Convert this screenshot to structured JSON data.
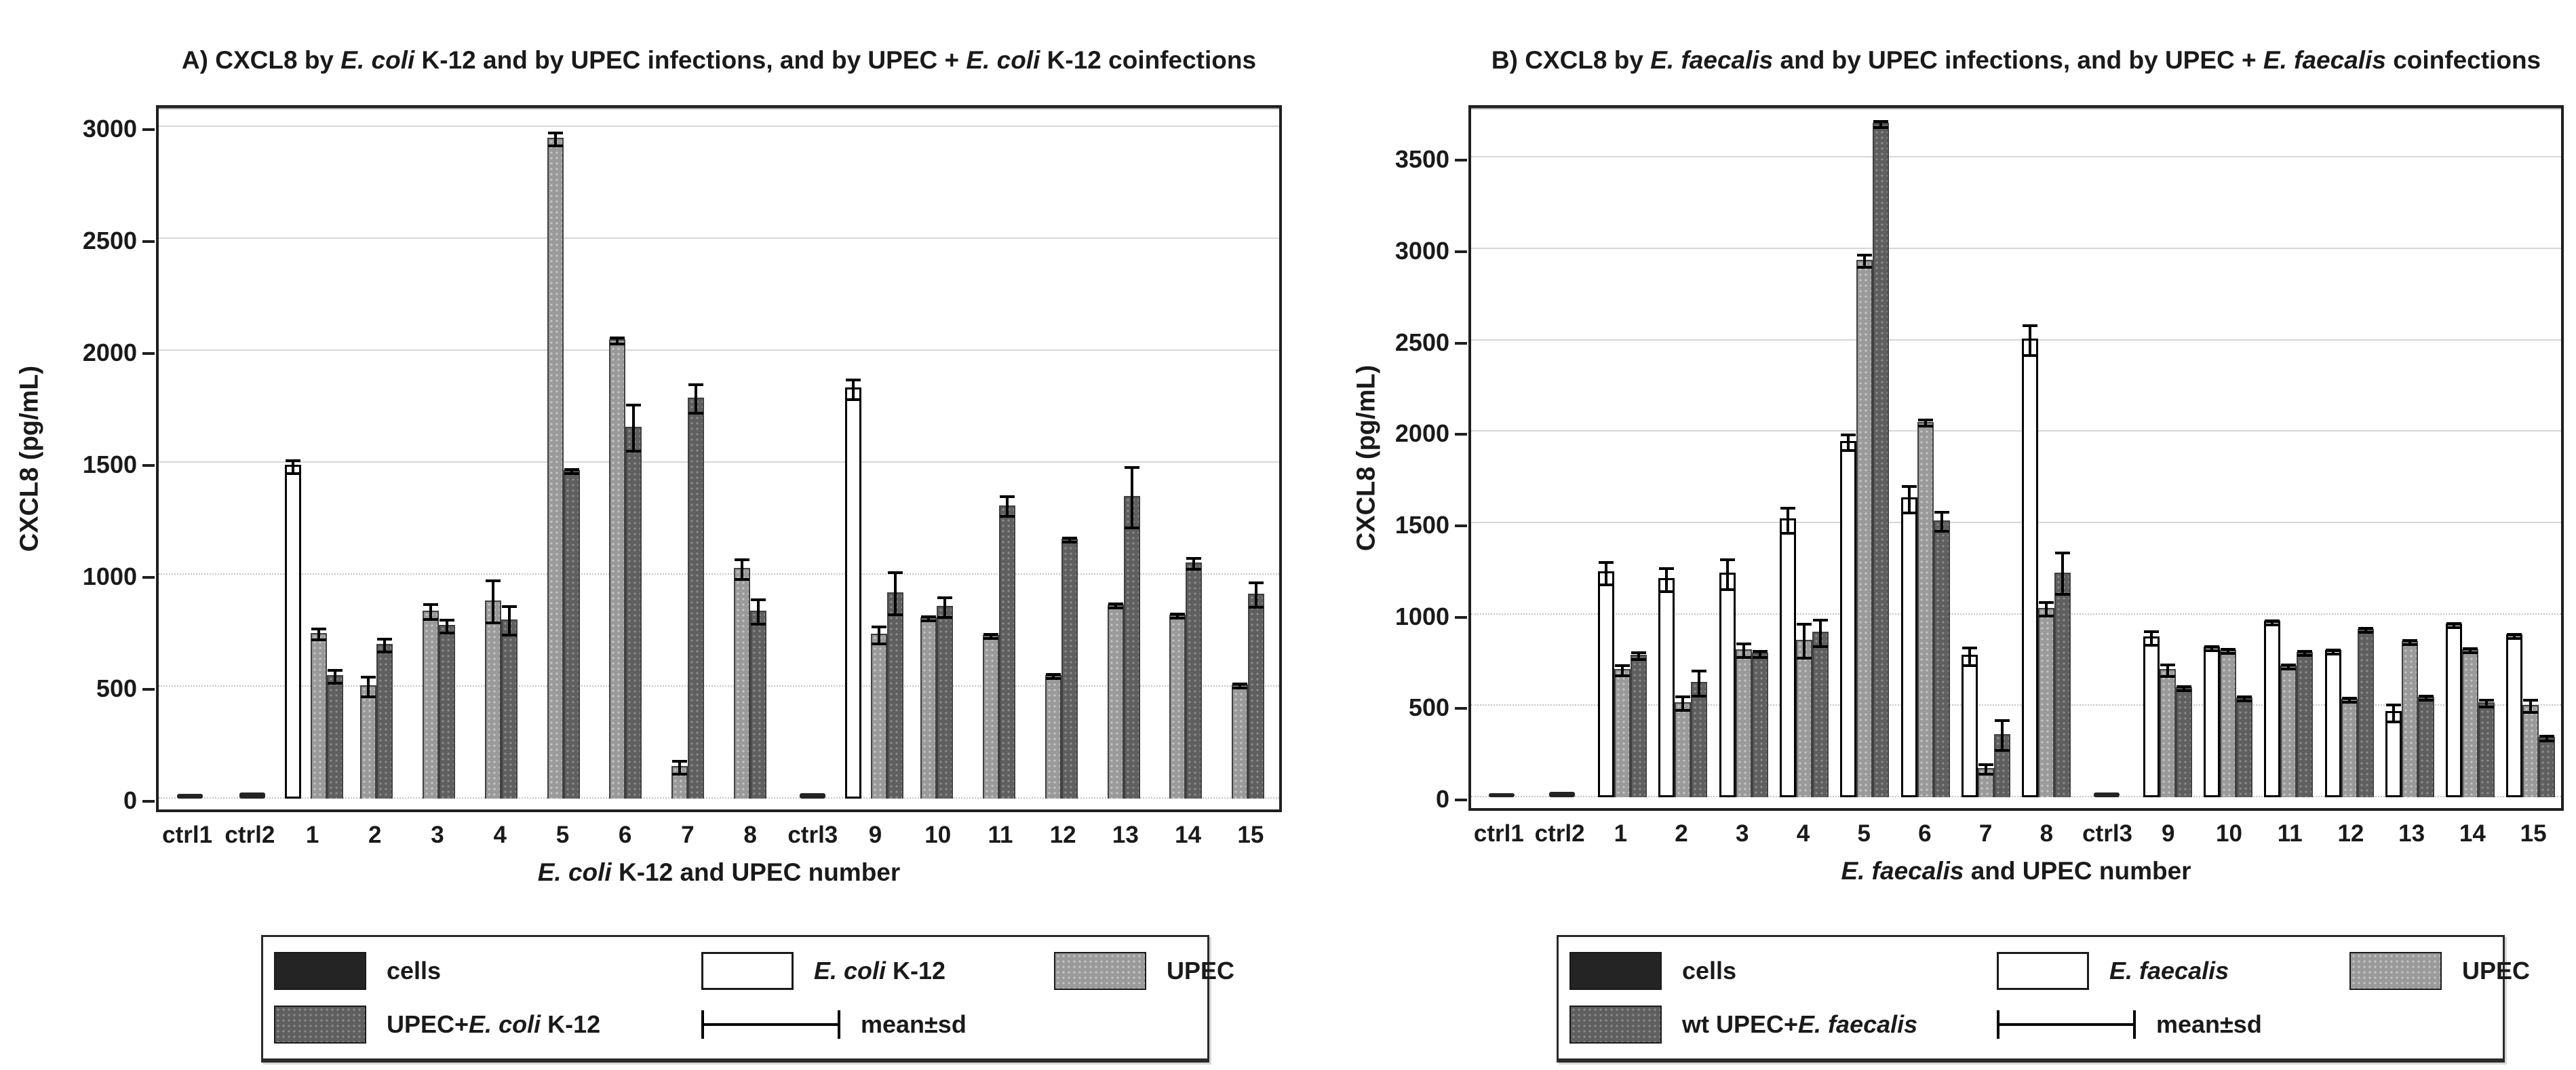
{
  "figure": {
    "background": "#ffffff"
  },
  "styles": {
    "series_colors": {
      "cells": "#242424",
      "mono": "#ffffff",
      "upec": "#9a9a9a",
      "co": "#5f5f5f"
    },
    "error_bar_color": "#000000",
    "grid_color": "#d6d6d6",
    "frame_color": "#1f1f1f"
  },
  "chart_data": [
    {
      "id": "A",
      "type": "bar",
      "title_parts": [
        {
          "t": "A) CXCL8 by "
        },
        {
          "t": "E. coli",
          "i": true
        },
        {
          "t": " K-12 and by UPEC infections, and by UPEC + "
        },
        {
          "t": "E. coli",
          "i": true
        },
        {
          "t": " K-12 coinfections"
        }
      ],
      "ylabel": "CXCL8 (pg/mL)",
      "xlabel_parts": [
        {
          "t": "E. coli",
          "i": true
        },
        {
          "t": " K-12 and UPEC number"
        }
      ],
      "yticks": [
        0,
        500,
        1000,
        1500,
        2000,
        2500,
        3000
      ],
      "ylim": [
        0,
        3090
      ],
      "grid": true,
      "legend_position": "bottom",
      "series_labels": {
        "cells": "cells",
        "mono": "E. coli K-12",
        "upec": "UPEC",
        "co": "UPEC+E. coli K-12",
        "error": "mean±sd"
      },
      "legend_items": [
        {
          "swatch": "cells",
          "parts": [
            {
              "t": "cells"
            }
          ]
        },
        {
          "swatch": "mono",
          "parts": [
            {
              "t": "E. coli",
              "i": true
            },
            {
              "t": " K-12"
            }
          ]
        },
        {
          "swatch": "upec",
          "parts": [
            {
              "t": "UPEC"
            }
          ]
        },
        {
          "swatch": "co",
          "parts": [
            {
              "t": "UPEC+"
            },
            {
              "t": "E. coli",
              "i": true
            },
            {
              "t": " K-12"
            }
          ]
        },
        {
          "swatch": "err",
          "parts": [
            {
              "t": "mean±sd"
            }
          ]
        }
      ],
      "groups": [
        {
          "label": "ctrl1",
          "bars": [
            {
              "s": "cells",
              "v": 20,
              "sd": 0
            }
          ]
        },
        {
          "label": "ctrl2",
          "bars": [
            {
              "s": "cells",
              "v": 28,
              "sd": 0
            }
          ]
        },
        {
          "label": "1",
          "bars": [
            {
              "s": "mono",
              "v": 1490,
              "sd": 35
            },
            {
              "s": "upec",
              "v": 740,
              "sd": 30
            },
            {
              "s": "co",
              "v": 550,
              "sd": 35
            }
          ]
        },
        {
          "label": "2",
          "bars": [
            {
              "s": "upec",
              "v": 505,
              "sd": 50
            },
            {
              "s": "co",
              "v": 690,
              "sd": 35
            }
          ]
        },
        {
          "label": "3",
          "bars": [
            {
              "s": "upec",
              "v": 840,
              "sd": 40
            },
            {
              "s": "co",
              "v": 775,
              "sd": 35
            }
          ]
        },
        {
          "label": "4",
          "bars": [
            {
              "s": "upec",
              "v": 885,
              "sd": 100
            },
            {
              "s": "co",
              "v": 800,
              "sd": 70
            }
          ]
        },
        {
          "label": "5",
          "bars": [
            {
              "s": "upec",
              "v": 2950,
              "sd": 35
            },
            {
              "s": "co",
              "v": 1465,
              "sd": 15
            }
          ]
        },
        {
          "label": "6",
          "bars": [
            {
              "s": "upec",
              "v": 2050,
              "sd": 20
            },
            {
              "s": "co",
              "v": 1660,
              "sd": 110
            }
          ]
        },
        {
          "label": "7",
          "bars": [
            {
              "s": "upec",
              "v": 145,
              "sd": 35
            },
            {
              "s": "co",
              "v": 1790,
              "sd": 70
            }
          ]
        },
        {
          "label": "8",
          "bars": [
            {
              "s": "upec",
              "v": 1030,
              "sd": 50
            },
            {
              "s": "co",
              "v": 840,
              "sd": 60
            }
          ]
        },
        {
          "label": "ctrl3",
          "bars": [
            {
              "s": "cells",
              "v": 25,
              "sd": 0
            }
          ]
        },
        {
          "label": "9",
          "bars": [
            {
              "s": "mono",
              "v": 1835,
              "sd": 50
            },
            {
              "s": "upec",
              "v": 735,
              "sd": 45
            },
            {
              "s": "co",
              "v": 920,
              "sd": 100
            }
          ]
        },
        {
          "label": "10",
          "bars": [
            {
              "s": "upec",
              "v": 810,
              "sd": 15
            },
            {
              "s": "co",
              "v": 860,
              "sd": 50
            }
          ]
        },
        {
          "label": "11",
          "bars": [
            {
              "s": "upec",
              "v": 730,
              "sd": 15
            },
            {
              "s": "co",
              "v": 1310,
              "sd": 50
            }
          ]
        },
        {
          "label": "12",
          "bars": [
            {
              "s": "upec",
              "v": 550,
              "sd": 10
            },
            {
              "s": "co",
              "v": 1160,
              "sd": 10
            }
          ]
        },
        {
          "label": "13",
          "bars": [
            {
              "s": "upec",
              "v": 865,
              "sd": 15
            },
            {
              "s": "co",
              "v": 1350,
              "sd": 140
            }
          ]
        },
        {
          "label": "14",
          "bars": [
            {
              "s": "upec",
              "v": 820,
              "sd": 10
            },
            {
              "s": "co",
              "v": 1055,
              "sd": 30
            }
          ]
        },
        {
          "label": "15",
          "bars": [
            {
              "s": "upec",
              "v": 510,
              "sd": 15
            },
            {
              "s": "co",
              "v": 915,
              "sd": 60
            }
          ]
        }
      ]
    },
    {
      "id": "B",
      "type": "bar",
      "title_parts": [
        {
          "t": "B) CXCL8 by "
        },
        {
          "t": "E. faecalis",
          "i": true
        },
        {
          "t": " and by UPEC infections, and by UPEC + "
        },
        {
          "t": "E. faecalis",
          "i": true
        },
        {
          "t": " coinfections"
        }
      ],
      "ylabel": "CXCL8 (pg/mL)",
      "xlabel_parts": [
        {
          "t": "E. faecalis",
          "i": true
        },
        {
          "t": " and UPEC number"
        }
      ],
      "yticks": [
        0,
        500,
        1000,
        1500,
        2000,
        2500,
        3000,
        3500
      ],
      "ylim": [
        0,
        3780
      ],
      "grid": true,
      "legend_position": "bottom",
      "series_labels": {
        "cells": "cells",
        "mono": "E. faecalis",
        "upec": "UPEC",
        "co": "wt UPEC+E. faecalis",
        "error": "mean±sd"
      },
      "legend_items": [
        {
          "swatch": "cells",
          "parts": [
            {
              "t": "cells"
            }
          ]
        },
        {
          "swatch": "mono",
          "parts": [
            {
              "t": "E. faecalis",
              "i": true
            }
          ]
        },
        {
          "swatch": "upec",
          "parts": [
            {
              "t": "UPEC"
            }
          ]
        },
        {
          "swatch": "co",
          "parts": [
            {
              "t": "wt UPEC+"
            },
            {
              "t": "E. faecalis",
              "i": true
            }
          ]
        },
        {
          "swatch": "err",
          "parts": [
            {
              "t": "mean±sd"
            }
          ]
        }
      ],
      "groups": [
        {
          "label": "ctrl1",
          "bars": [
            {
              "s": "cells",
              "v": 15,
              "sd": 0
            }
          ]
        },
        {
          "label": "ctrl2",
          "bars": [
            {
              "s": "cells",
              "v": 28,
              "sd": 0
            }
          ]
        },
        {
          "label": "1",
          "bars": [
            {
              "s": "mono",
              "v": 1235,
              "sd": 70
            },
            {
              "s": "upec",
              "v": 700,
              "sd": 35
            },
            {
              "s": "co",
              "v": 780,
              "sd": 25
            }
          ]
        },
        {
          "label": "2",
          "bars": [
            {
              "s": "mono",
              "v": 1200,
              "sd": 70
            },
            {
              "s": "upec",
              "v": 520,
              "sd": 45
            },
            {
              "s": "co",
              "v": 630,
              "sd": 75
            }
          ]
        },
        {
          "label": "3",
          "bars": [
            {
              "s": "mono",
              "v": 1230,
              "sd": 90
            },
            {
              "s": "upec",
              "v": 810,
              "sd": 45
            },
            {
              "s": "co",
              "v": 790,
              "sd": 25
            }
          ]
        },
        {
          "label": "4",
          "bars": [
            {
              "s": "mono",
              "v": 1525,
              "sd": 75
            },
            {
              "s": "upec",
              "v": 860,
              "sd": 100
            },
            {
              "s": "co",
              "v": 905,
              "sd": 80
            }
          ]
        },
        {
          "label": "5",
          "bars": [
            {
              "s": "mono",
              "v": 1950,
              "sd": 50
            },
            {
              "s": "upec",
              "v": 2940,
              "sd": 40
            },
            {
              "s": "co",
              "v": 3690,
              "sd": 25
            }
          ]
        },
        {
          "label": "6",
          "bars": [
            {
              "s": "mono",
              "v": 1640,
              "sd": 80
            },
            {
              "s": "upec",
              "v": 2055,
              "sd": 25
            },
            {
              "s": "co",
              "v": 1515,
              "sd": 60
            }
          ]
        },
        {
          "label": "7",
          "bars": [
            {
              "s": "mono",
              "v": 780,
              "sd": 55
            },
            {
              "s": "upec",
              "v": 160,
              "sd": 35
            },
            {
              "s": "co",
              "v": 345,
              "sd": 90
            }
          ]
        },
        {
          "label": "8",
          "bars": [
            {
              "s": "mono",
              "v": 2510,
              "sd": 90
            },
            {
              "s": "upec",
              "v": 1035,
              "sd": 45
            },
            {
              "s": "co",
              "v": 1230,
              "sd": 120
            }
          ]
        },
        {
          "label": "ctrl3",
          "bars": [
            {
              "s": "cells",
              "v": 25,
              "sd": 0
            }
          ]
        },
        {
          "label": "9",
          "bars": [
            {
              "s": "mono",
              "v": 880,
              "sd": 45
            },
            {
              "s": "upec",
              "v": 700,
              "sd": 40
            },
            {
              "s": "co",
              "v": 600,
              "sd": 15
            }
          ]
        },
        {
          "label": "10",
          "bars": [
            {
              "s": "mono",
              "v": 825,
              "sd": 10
            },
            {
              "s": "upec",
              "v": 805,
              "sd": 15
            },
            {
              "s": "co",
              "v": 545,
              "sd": 10
            }
          ]
        },
        {
          "label": "11",
          "bars": [
            {
              "s": "mono",
              "v": 965,
              "sd": 10
            },
            {
              "s": "upec",
              "v": 720,
              "sd": 15
            },
            {
              "s": "co",
              "v": 795,
              "sd": 15
            }
          ]
        },
        {
          "label": "12",
          "bars": [
            {
              "s": "mono",
              "v": 805,
              "sd": 10
            },
            {
              "s": "upec",
              "v": 540,
              "sd": 10
            },
            {
              "s": "co",
              "v": 920,
              "sd": 10
            }
          ]
        },
        {
          "label": "13",
          "bars": [
            {
              "s": "mono",
              "v": 470,
              "sd": 55
            },
            {
              "s": "upec",
              "v": 855,
              "sd": 10
            },
            {
              "s": "co",
              "v": 550,
              "sd": 10
            }
          ]
        },
        {
          "label": "14",
          "bars": [
            {
              "s": "mono",
              "v": 950,
              "sd": 10
            },
            {
              "s": "upec",
              "v": 810,
              "sd": 15
            },
            {
              "s": "co",
              "v": 520,
              "sd": 25
            }
          ]
        },
        {
          "label": "15",
          "bars": [
            {
              "s": "mono",
              "v": 890,
              "sd": 10
            },
            {
              "s": "upec",
              "v": 505,
              "sd": 40
            },
            {
              "s": "co",
              "v": 330,
              "sd": 20
            }
          ]
        }
      ]
    }
  ]
}
